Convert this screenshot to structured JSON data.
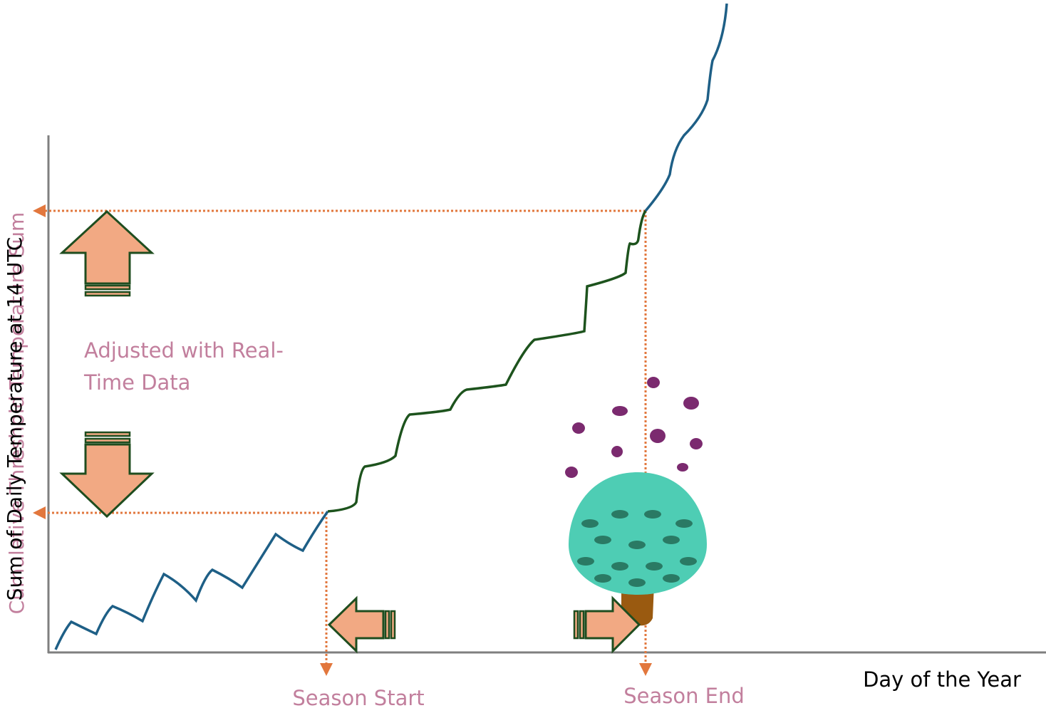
{
  "y_axis_labels": [
    "Sum of Daily Temperature at 14 UTC",
    "Cumulative Threshold Temperature Sum"
  ],
  "x_axis_label": "Day of the Year",
  "adjusted_note": [
    "Adjusted with Real-",
    "Time Data"
  ],
  "markers": [
    "Season Start",
    "Season End"
  ]
}
